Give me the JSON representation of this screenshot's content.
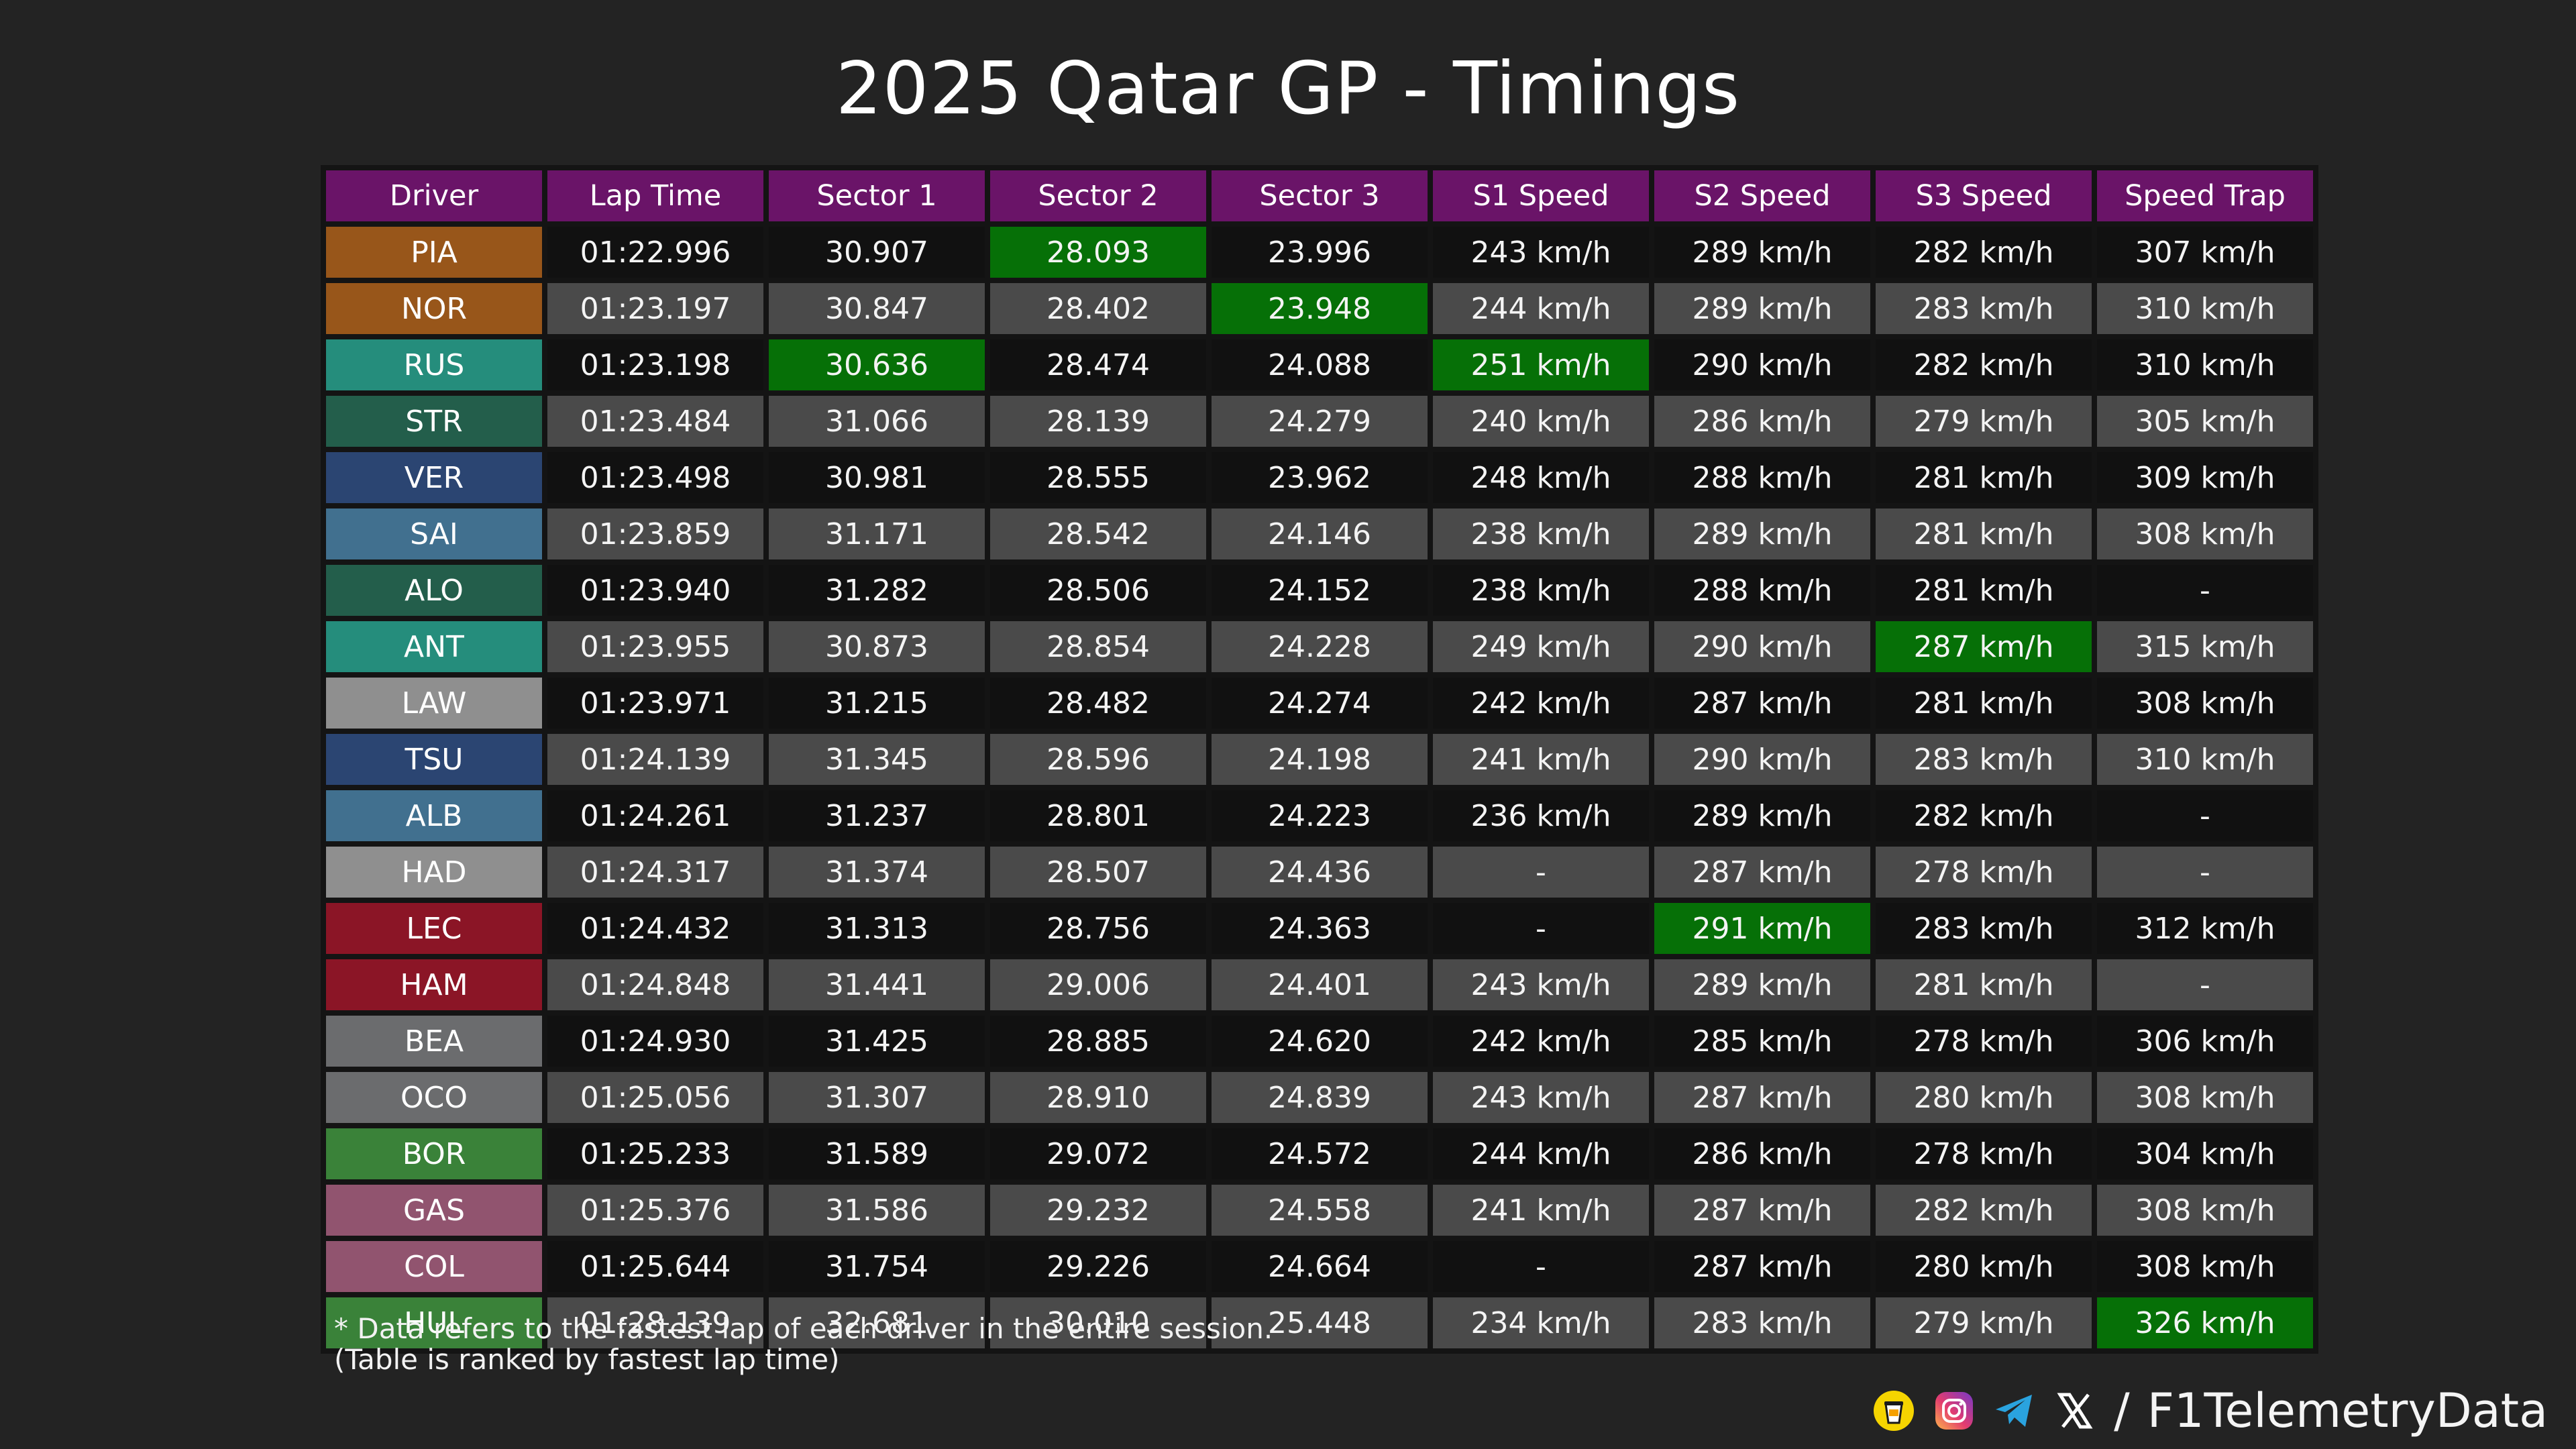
{
  "title": "2025 Qatar GP - Timings",
  "watermark": "@F1TelemetryData",
  "colors": {
    "header_bg": "#6a1468",
    "best_bg": "#067007",
    "row_dark": "#111111",
    "row_light": "#4a4a4a",
    "background": "#232323"
  },
  "chart_data": {
    "type": "table",
    "title": "2025 Qatar GP - Timings",
    "columns": [
      "Driver",
      "Lap Time",
      "Sector 1",
      "Sector 2",
      "Sector 3",
      "S1 Speed",
      "S2 Speed",
      "S3 Speed",
      "Speed Trap"
    ],
    "rows": [
      {
        "driver": "PIA",
        "team_color": "#98561a",
        "cells": [
          "01:22.996",
          "30.907",
          "28.093",
          "23.996",
          "243 km/h",
          "289 km/h",
          "282 km/h",
          "307 km/h"
        ],
        "best": [
          2
        ]
      },
      {
        "driver": "NOR",
        "team_color": "#98561a",
        "cells": [
          "01:23.197",
          "30.847",
          "28.402",
          "23.948",
          "244 km/h",
          "289 km/h",
          "283 km/h",
          "310 km/h"
        ],
        "best": [
          3
        ]
      },
      {
        "driver": "RUS",
        "team_color": "#258d7c",
        "cells": [
          "01:23.198",
          "30.636",
          "28.474",
          "24.088",
          "251 km/h",
          "290 km/h",
          "282 km/h",
          "310 km/h"
        ],
        "best": [
          1,
          4
        ]
      },
      {
        "driver": "STR",
        "team_color": "#235e4b",
        "cells": [
          "01:23.484",
          "31.066",
          "28.139",
          "24.279",
          "240 km/h",
          "286 km/h",
          "279 km/h",
          "305 km/h"
        ],
        "best": []
      },
      {
        "driver": "VER",
        "team_color": "#2b4572",
        "cells": [
          "01:23.498",
          "30.981",
          "28.555",
          "23.962",
          "248 km/h",
          "288 km/h",
          "281 km/h",
          "309 km/h"
        ],
        "best": []
      },
      {
        "driver": "SAI",
        "team_color": "#41708f",
        "cells": [
          "01:23.859",
          "31.171",
          "28.542",
          "24.146",
          "238 km/h",
          "289 km/h",
          "281 km/h",
          "308 km/h"
        ],
        "best": []
      },
      {
        "driver": "ALO",
        "team_color": "#235e4b",
        "cells": [
          "01:23.940",
          "31.282",
          "28.506",
          "24.152",
          "238 km/h",
          "288 km/h",
          "281 km/h",
          "-"
        ],
        "best": []
      },
      {
        "driver": "ANT",
        "team_color": "#258d7c",
        "cells": [
          "01:23.955",
          "30.873",
          "28.854",
          "24.228",
          "249 km/h",
          "290 km/h",
          "287 km/h",
          "315 km/h"
        ],
        "best": [
          6
        ]
      },
      {
        "driver": "LAW",
        "team_color": "#8f8f8f",
        "cells": [
          "01:23.971",
          "31.215",
          "28.482",
          "24.274",
          "242 km/h",
          "287 km/h",
          "281 km/h",
          "308 km/h"
        ],
        "best": []
      },
      {
        "driver": "TSU",
        "team_color": "#2b4572",
        "cells": [
          "01:24.139",
          "31.345",
          "28.596",
          "24.198",
          "241 km/h",
          "290 km/h",
          "283 km/h",
          "310 km/h"
        ],
        "best": []
      },
      {
        "driver": "ALB",
        "team_color": "#41708f",
        "cells": [
          "01:24.261",
          "31.237",
          "28.801",
          "24.223",
          "236 km/h",
          "289 km/h",
          "282 km/h",
          "-"
        ],
        "best": []
      },
      {
        "driver": "HAD",
        "team_color": "#8f8f8f",
        "cells": [
          "01:24.317",
          "31.374",
          "28.507",
          "24.436",
          "-",
          "287 km/h",
          "278 km/h",
          "-"
        ],
        "best": []
      },
      {
        "driver": "LEC",
        "team_color": "#8b1526",
        "cells": [
          "01:24.432",
          "31.313",
          "28.756",
          "24.363",
          "-",
          "291 km/h",
          "283 km/h",
          "312 km/h"
        ],
        "best": [
          5
        ]
      },
      {
        "driver": "HAM",
        "team_color": "#8b1526",
        "cells": [
          "01:24.848",
          "31.441",
          "29.006",
          "24.401",
          "243 km/h",
          "289 km/h",
          "281 km/h",
          "-"
        ],
        "best": []
      },
      {
        "driver": "BEA",
        "team_color": "#6b6c6e",
        "cells": [
          "01:24.930",
          "31.425",
          "28.885",
          "24.620",
          "242 km/h",
          "285 km/h",
          "278 km/h",
          "306 km/h"
        ],
        "best": []
      },
      {
        "driver": "OCO",
        "team_color": "#6b6c6e",
        "cells": [
          "01:25.056",
          "31.307",
          "28.910",
          "24.839",
          "243 km/h",
          "287 km/h",
          "280 km/h",
          "308 km/h"
        ],
        "best": []
      },
      {
        "driver": "BOR",
        "team_color": "#3a8239",
        "cells": [
          "01:25.233",
          "31.589",
          "29.072",
          "24.572",
          "244 km/h",
          "286 km/h",
          "278 km/h",
          "304 km/h"
        ],
        "best": []
      },
      {
        "driver": "GAS",
        "team_color": "#91546f",
        "cells": [
          "01:25.376",
          "31.586",
          "29.232",
          "24.558",
          "241 km/h",
          "287 km/h",
          "282 km/h",
          "308 km/h"
        ],
        "best": []
      },
      {
        "driver": "COL",
        "team_color": "#91546f",
        "cells": [
          "01:25.644",
          "31.754",
          "29.226",
          "24.664",
          "-",
          "287 km/h",
          "280 km/h",
          "308 km/h"
        ],
        "best": []
      },
      {
        "driver": "HUL",
        "team_color": "#3a8239",
        "cells": [
          "01:28.139",
          "32.681",
          "30.010",
          "25.448",
          "234 km/h",
          "283 km/h",
          "279 km/h",
          "326 km/h"
        ],
        "best": [
          7
        ]
      }
    ]
  },
  "footnote": {
    "line1": "* Data refers to the fastest lap of each driver in the entire session.",
    "line2": "(Table is ranked by fastest lap time)"
  },
  "social": {
    "separator": "/",
    "handle": "F1TelemetryData",
    "icons": [
      "buymeacoffee-icon",
      "instagram-icon",
      "telegram-icon",
      "x-icon"
    ]
  }
}
